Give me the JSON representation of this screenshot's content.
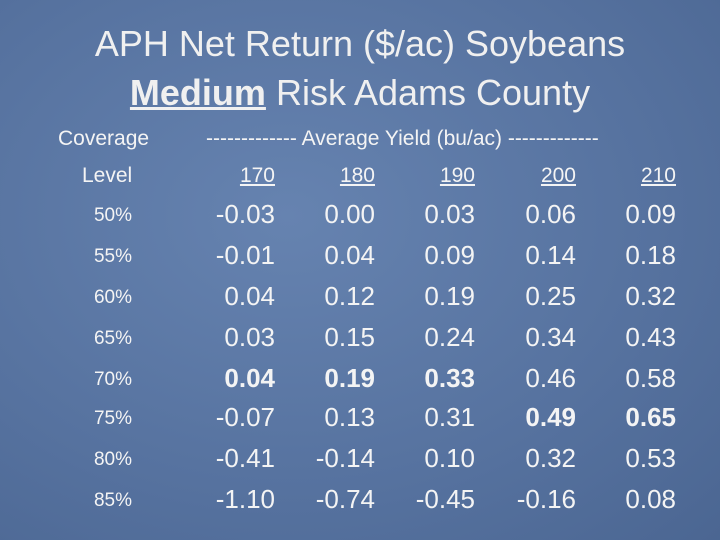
{
  "title": {
    "line1": "APH Net Return ($/ac) Soybeans",
    "emphasis": "Medium",
    "line2_rest": "Risk Adams County"
  },
  "table": {
    "header": {
      "coverage": "Coverage",
      "level": "Level",
      "yield_span": "------------- Average Yield (bu/ac) -------------",
      "columns": [
        "170",
        "180",
        "190",
        "200",
        "210"
      ]
    },
    "rows": [
      {
        "level": "50%",
        "cells": [
          "-0.03",
          "0.00",
          "0.03",
          "0.06",
          "0.09"
        ],
        "bold": []
      },
      {
        "level": "55%",
        "cells": [
          "-0.01",
          "0.04",
          "0.09",
          "0.14",
          "0.18"
        ],
        "bold": []
      },
      {
        "level": "60%",
        "cells": [
          "0.04",
          "0.12",
          "0.19",
          "0.25",
          "0.32"
        ],
        "bold": []
      },
      {
        "level": "65%",
        "cells": [
          "0.03",
          "0.15",
          "0.24",
          "0.34",
          "0.43"
        ],
        "bold": []
      },
      {
        "level": "70%",
        "cells": [
          "0.04",
          "0.19",
          "0.33",
          "0.46",
          "0.58"
        ],
        "bold": [
          0,
          1,
          2
        ]
      },
      {
        "level": "75%",
        "cells": [
          "-0.07",
          "0.13",
          "0.31",
          "0.49",
          "0.65"
        ],
        "bold": [
          3,
          4
        ]
      },
      {
        "level": "80%",
        "cells": [
          "-0.41",
          "-0.14",
          "0.10",
          "0.32",
          "0.53"
        ],
        "bold": []
      },
      {
        "level": "85%",
        "cells": [
          "-1.10",
          "-0.74",
          "-0.45",
          "-0.16",
          "0.08"
        ],
        "bold": []
      }
    ]
  }
}
